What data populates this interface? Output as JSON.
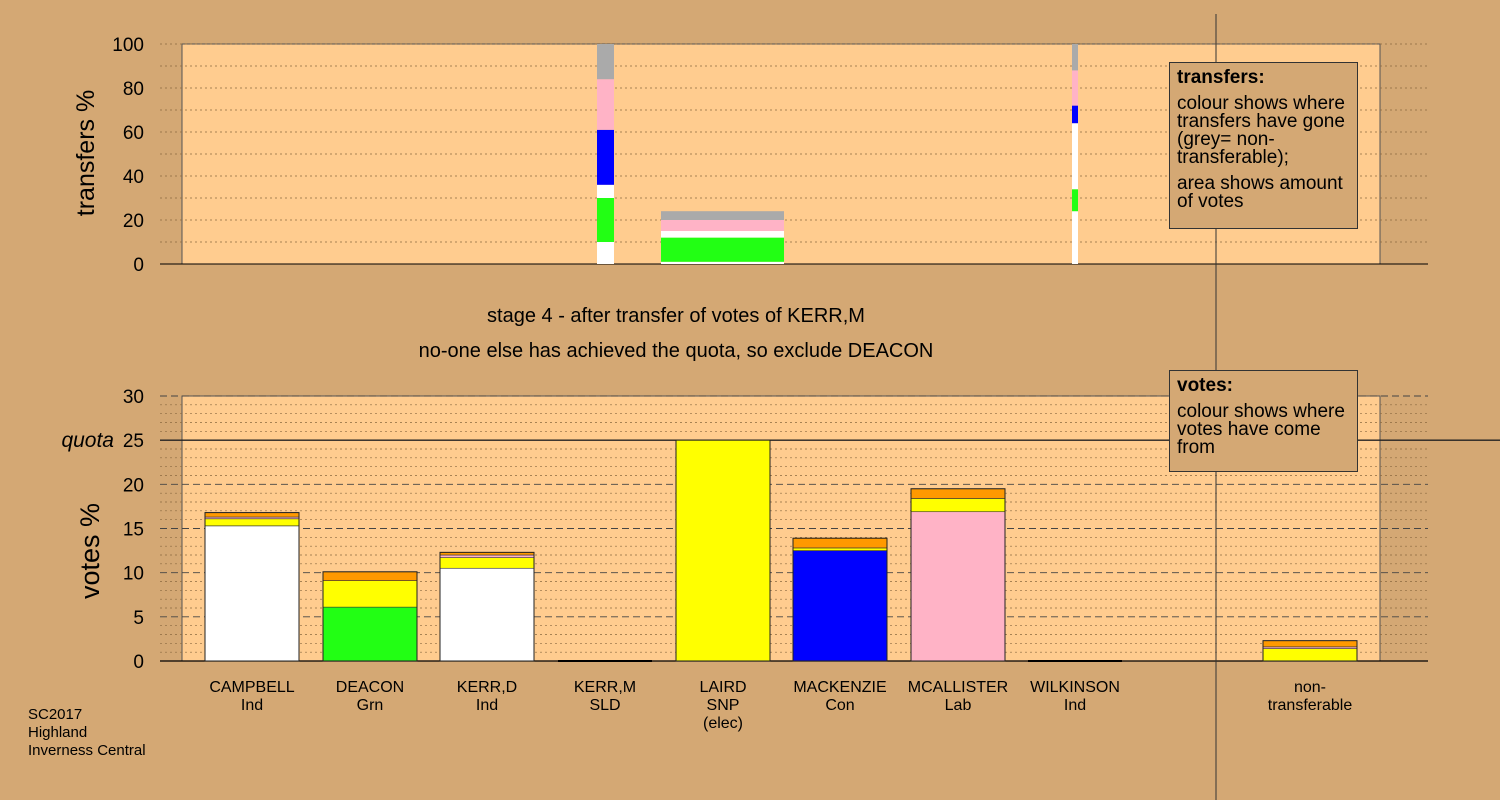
{
  "stage_text": "stage 4 - after transfer of votes of KERR,M",
  "action_text": "no-one else has achieved the quota, so exclude DEACON",
  "legend_transfers": {
    "title": "transfers:",
    "lines": [
      "colour shows where transfers have gone (grey= non-transferable);",
      "area shows amount of votes"
    ]
  },
  "legend_votes": {
    "title": "votes:",
    "lines": [
      "colour shows where votes have come from"
    ]
  },
  "footer": {
    "line1": "SC2017",
    "line2": "Highland",
    "line3": "Inverness Central"
  },
  "colors": {
    "background": "#d4a874",
    "plot": "#ffcc8f",
    "white": "#ffffff",
    "green": "#22ff14",
    "blue": "#0000ff",
    "pink": "#ffb3c6",
    "yellow": "#ffff00",
    "orange": "#ff9900",
    "grey": "#aaaaaa"
  },
  "candidates": [
    {
      "name": "CAMPBELL",
      "party": "Ind",
      "note": ""
    },
    {
      "name": "DEACON",
      "party": "Grn",
      "note": ""
    },
    {
      "name": "KERR,D",
      "party": "Ind",
      "note": ""
    },
    {
      "name": "KERR,M",
      "party": "SLD",
      "note": ""
    },
    {
      "name": "LAIRD",
      "party": "SNP",
      "note": "(elec)"
    },
    {
      "name": "MACKENZIE",
      "party": "Con",
      "note": ""
    },
    {
      "name": "MCALLISTER",
      "party": "Lab",
      "note": ""
    },
    {
      "name": "WILKINSON",
      "party": "Ind",
      "note": ""
    }
  ],
  "nontransferable_label": "non-\ntransferable",
  "chart_data": [
    {
      "type": "bar",
      "ylabel": "transfers %",
      "ylim": [
        0,
        100
      ],
      "yticks": [
        0,
        20,
        40,
        60,
        80,
        100
      ],
      "grid": "dotted",
      "transfer_columns": [
        {
          "segments": [
            {
              "color": "white",
              "from": 0,
              "to": 10
            },
            {
              "color": "green",
              "from": 10,
              "to": 30
            },
            {
              "color": "white",
              "from": 30,
              "to": 36
            },
            {
              "color": "blue",
              "from": 36,
              "to": 61
            },
            {
              "color": "pink",
              "from": 61,
              "to": 84
            },
            {
              "color": "grey",
              "from": 84,
              "to": 100
            }
          ]
        },
        {
          "segments": [
            {
              "color": "white",
              "from": 0,
              "to": 1
            },
            {
              "color": "green",
              "from": 1,
              "to": 12
            },
            {
              "color": "white",
              "from": 12,
              "to": 15
            },
            {
              "color": "pink",
              "from": 15,
              "to": 20
            },
            {
              "color": "grey",
              "from": 20,
              "to": 24
            }
          ]
        },
        {
          "segments": [
            {
              "color": "white",
              "from": 0,
              "to": 24
            },
            {
              "color": "green",
              "from": 24,
              "to": 34
            },
            {
              "color": "white",
              "from": 34,
              "to": 64
            },
            {
              "color": "blue",
              "from": 64,
              "to": 72
            },
            {
              "color": "pink",
              "from": 72,
              "to": 88
            },
            {
              "color": "grey",
              "from": 88,
              "to": 100
            }
          ]
        }
      ]
    },
    {
      "type": "bar",
      "ylabel": "votes %",
      "ylim": [
        0,
        30
      ],
      "yticks": [
        0,
        5,
        10,
        15,
        20,
        25,
        30
      ],
      "quota": 25,
      "quota_label": "quota",
      "grid": "dashed",
      "bars": [
        {
          "segments": [
            {
              "color": "white",
              "value": 15.3
            },
            {
              "color": "yellow",
              "value": 0.8
            },
            {
              "color": "pink",
              "value": 0.2
            },
            {
              "color": "orange",
              "value": 0.5
            }
          ]
        },
        {
          "segments": [
            {
              "color": "green",
              "value": 6.1
            },
            {
              "color": "yellow",
              "value": 3.0
            },
            {
              "color": "orange",
              "value": 1.0
            }
          ]
        },
        {
          "segments": [
            {
              "color": "white",
              "value": 10.5
            },
            {
              "color": "yellow",
              "value": 1.2
            },
            {
              "color": "pink",
              "value": 0.3
            },
            {
              "color": "orange",
              "value": 0.3
            }
          ]
        },
        {
          "segments": []
        },
        {
          "segments": [
            {
              "color": "yellow",
              "value": 25
            }
          ]
        },
        {
          "segments": [
            {
              "color": "blue",
              "value": 12.5
            },
            {
              "color": "yellow",
              "value": 0.3
            },
            {
              "color": "orange",
              "value": 1.1
            }
          ]
        },
        {
          "segments": [
            {
              "color": "pink",
              "value": 16.9
            },
            {
              "color": "yellow",
              "value": 1.5
            },
            {
              "color": "orange",
              "value": 1.1
            }
          ]
        },
        {
          "segments": []
        },
        {
          "segments": [
            {
              "color": "yellow",
              "value": 1.4
            },
            {
              "color": "pink",
              "value": 0.2
            },
            {
              "color": "orange",
              "value": 0.7
            }
          ]
        }
      ]
    }
  ]
}
